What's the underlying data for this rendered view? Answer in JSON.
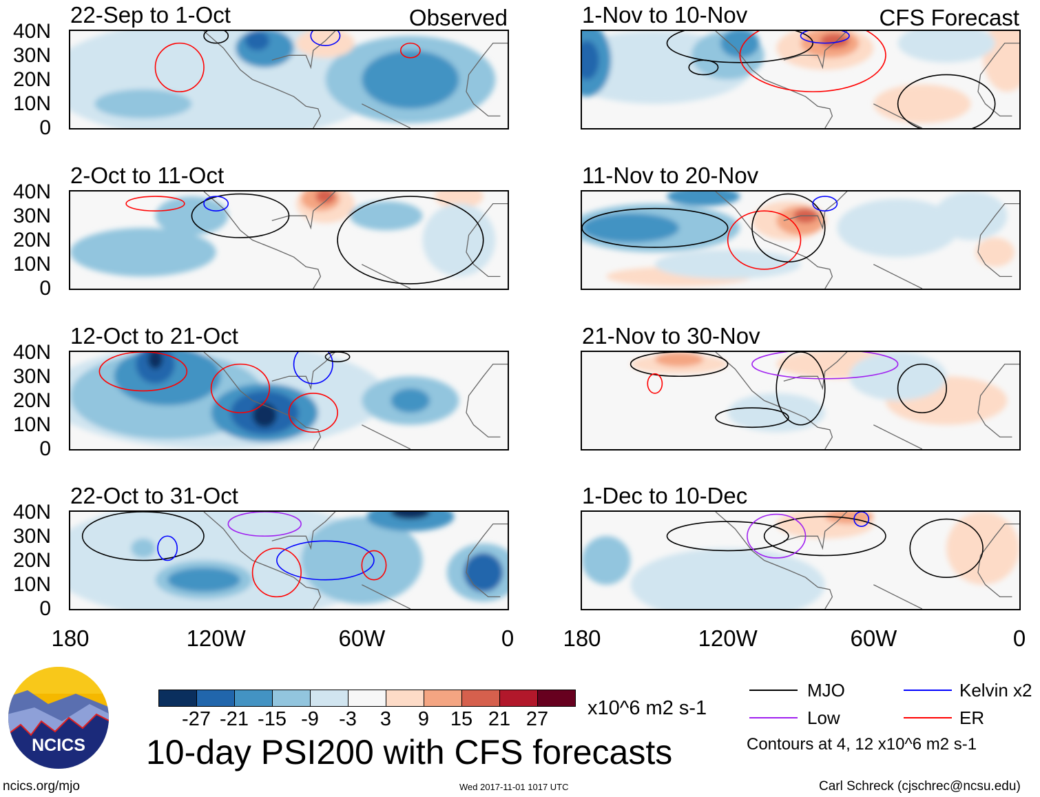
{
  "title": "10-day PSI200 with CFS forecasts",
  "units": "x10^6 m2 s-1",
  "panel_tags": {
    "observed": "Observed",
    "forecast": "CFS Forecast"
  },
  "panels": [
    {
      "period": "22-Sep to 1-Oct",
      "type": "observed"
    },
    {
      "period": "2-Oct to 11-Oct",
      "type": "observed"
    },
    {
      "period": "12-Oct to 21-Oct",
      "type": "observed"
    },
    {
      "period": "22-Oct to 31-Oct",
      "type": "observed"
    },
    {
      "period": "1-Nov to 10-Nov",
      "type": "forecast"
    },
    {
      "period": "11-Nov to 20-Nov",
      "type": "forecast"
    },
    {
      "period": "21-Nov to 30-Nov",
      "type": "forecast"
    },
    {
      "period": "1-Dec to 10-Dec",
      "type": "forecast"
    }
  ],
  "lat_labels": [
    "40N",
    "30N",
    "20N",
    "10N",
    "0"
  ],
  "lon_labels": [
    "180",
    "120W",
    "60W",
    "0"
  ],
  "colorbar": {
    "colors": [
      "#0a2f5e",
      "#2166ac",
      "#4393c3",
      "#92c5de",
      "#d1e5f0",
      "#f7f7f7",
      "#fddbc7",
      "#f4a582",
      "#d6604d",
      "#b2182b",
      "#67001f"
    ],
    "labels": [
      "-27",
      "-21",
      "-15",
      "-9",
      "-3",
      "3",
      "9",
      "15",
      "21",
      "27"
    ]
  },
  "legend": {
    "items": [
      {
        "label": "MJO",
        "color": "#000000"
      },
      {
        "label": "Kelvin x2",
        "color": "#0000ff"
      },
      {
        "label": "Low",
        "color": "#a020f0"
      },
      {
        "label": "ER",
        "color": "#ff0000"
      }
    ],
    "note": "Contours at 4, 12 x10^6 m2 s-1"
  },
  "logo": {
    "text": "NCICS"
  },
  "footer": {
    "url": "ncics.org/mjo",
    "timestamp": "Wed 2017-11-01 1017 UTC",
    "author": "Carl Schreck (cjschrec@ncsu.edu)"
  }
}
